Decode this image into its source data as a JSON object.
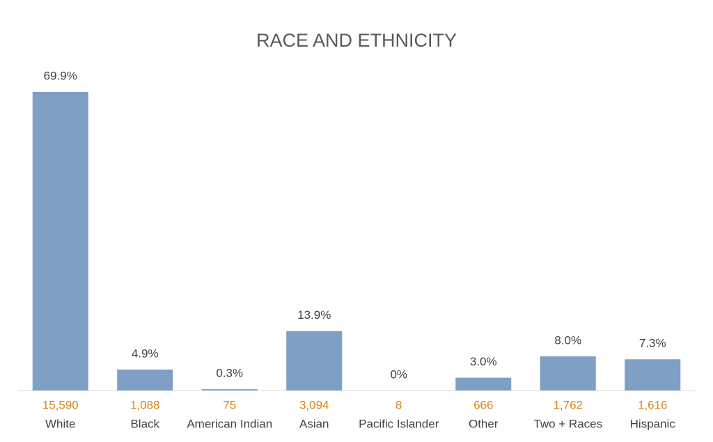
{
  "chart_data": {
    "type": "bar",
    "title": "RACE AND ETHNICITY",
    "categories": [
      "White",
      "Black",
      "American Indian",
      "Asian",
      "Pacific Islander",
      "Other",
      "Two + Races",
      "Hispanic"
    ],
    "values": [
      69.9,
      4.9,
      0.3,
      13.9,
      0,
      3.0,
      8.0,
      7.3
    ],
    "value_labels": [
      "69.9%",
      "4.9%",
      "0.3%",
      "13.9%",
      "0%",
      "3.0%",
      "8.0%",
      "7.3%"
    ],
    "counts": [
      15590,
      1088,
      75,
      3094,
      8,
      666,
      1762,
      1616
    ],
    "count_labels": [
      "15,590",
      "1,088",
      "75",
      "3,094",
      "8",
      "666",
      "1,762",
      "1,616"
    ],
    "color": "#7f9fc4",
    "count_color": "#d9861a"
  }
}
